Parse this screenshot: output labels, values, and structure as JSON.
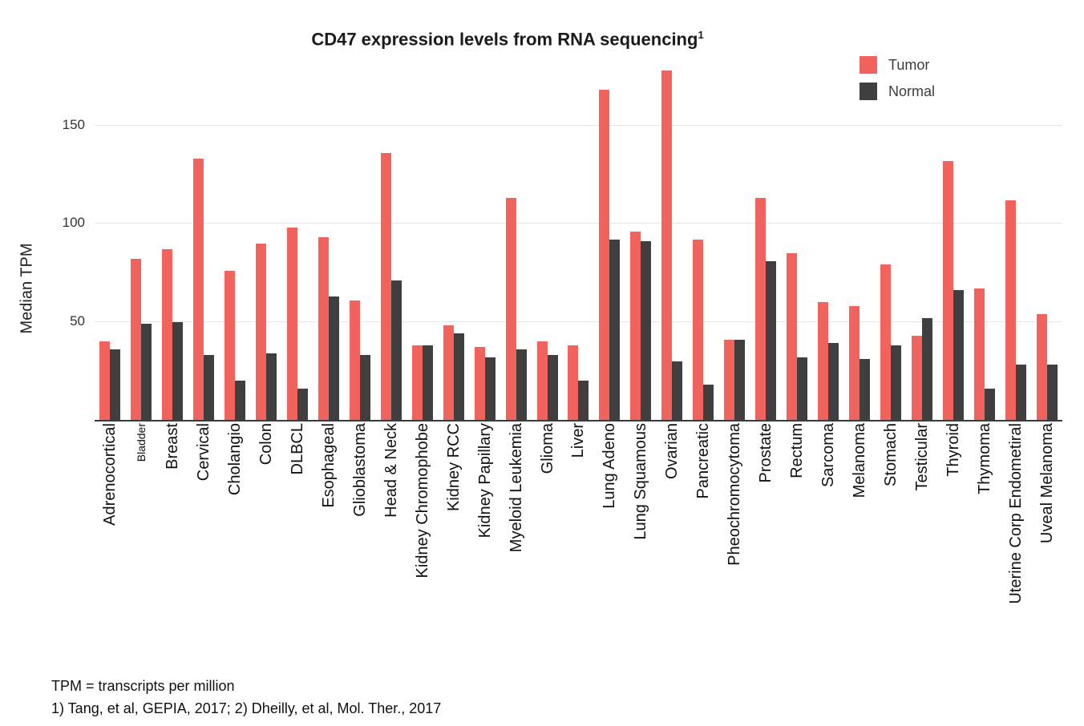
{
  "footnotes": [
    "TPM = transcripts per million",
    "1) Tang, et al, GEPIA, 2017; 2) Dheilly, et al, Mol. Ther., 2017"
  ],
  "chart_data": {
    "type": "bar",
    "title": "CD47 expression levels from RNA sequencing",
    "title_superscript": "1",
    "xlabel": "",
    "ylabel": "Median TPM",
    "ylim": [
      0,
      180
    ],
    "yticks": [
      50,
      100,
      150
    ],
    "grid": "horizontal",
    "legend_position": "top-right",
    "categories": [
      "Adrenocortical",
      "Bladder",
      "Breast",
      "Cervical",
      "Cholangio",
      "Colon",
      "DLBCL",
      "Esophageal",
      "Glioblastoma",
      "Head & Neck",
      "Kidney Chromophobe",
      "Kidney RCC",
      "Kidney Papillary",
      "Myeloid Leukemia",
      "Glioma",
      "Liver",
      "Lung Adeno",
      "Lung Squamous",
      "Ovarian",
      "Pancreatic",
      "Pheochromocytoma",
      "Prostate",
      "Rectum",
      "Sarcoma",
      "Melanoma",
      "Stomach",
      "Testicular",
      "Thyroid",
      "Thymoma",
      "Uterine Corp Endometiral",
      "Uveal Melanoma"
    ],
    "series": [
      {
        "name": "Tumor",
        "color": "#F2635E",
        "values": [
          40,
          82,
          87,
          133,
          76,
          90,
          98,
          93,
          61,
          136,
          38,
          48,
          37,
          113,
          40,
          38,
          168,
          96,
          178,
          92,
          41,
          113,
          85,
          60,
          58,
          79,
          43,
          132,
          67,
          112,
          54
        ]
      },
      {
        "name": "Normal",
        "color": "#3F3F3F",
        "values": [
          36,
          49,
          50,
          33,
          20,
          34,
          16,
          63,
          33,
          71,
          38,
          44,
          32,
          36,
          33,
          20,
          92,
          91,
          30,
          18,
          41,
          81,
          32,
          39,
          31,
          38,
          52,
          66,
          16,
          28,
          28
        ]
      }
    ],
    "colors": {
      "tumor": "#F2635E",
      "normal": "#3F3F3F",
      "gridline": "#E6E6E6",
      "axis": "#3A3A3A"
    },
    "layout": {
      "small_label_indices": [
        1
      ]
    }
  }
}
